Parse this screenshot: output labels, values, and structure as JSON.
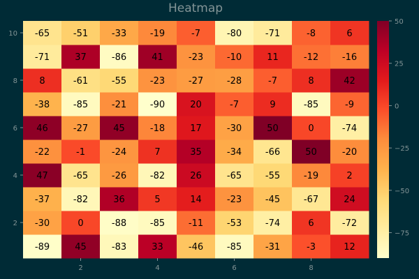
{
  "chart_data": {
    "type": "heatmap",
    "title": "Heatmap",
    "x": [
      1,
      2,
      3,
      4,
      5,
      6,
      7,
      8,
      9
    ],
    "y": [
      1,
      2,
      3,
      4,
      5,
      6,
      7,
      8,
      9,
      10
    ],
    "x_ticks": [
      2,
      4,
      6,
      8
    ],
    "y_ticks": [
      2,
      4,
      6,
      8,
      10
    ],
    "z": [
      [
        -89,
        45,
        -83,
        33,
        -46,
        -85,
        -31,
        -3,
        12
      ],
      [
        -30,
        0,
        -88,
        -85,
        -11,
        -53,
        -74,
        6,
        -72
      ],
      [
        -37,
        -82,
        36,
        5,
        14,
        -23,
        -45,
        -67,
        24
      ],
      [
        47,
        -65,
        -26,
        -82,
        26,
        -65,
        -55,
        -19,
        2
      ],
      [
        -22,
        -1,
        -24,
        7,
        35,
        -34,
        -66,
        50,
        -20
      ],
      [
        46,
        -27,
        45,
        -18,
        17,
        -30,
        50,
        0,
        -74
      ],
      [
        -38,
        -85,
        -21,
        -90,
        20,
        -7,
        9,
        -85,
        -9
      ],
      [
        8,
        -61,
        -55,
        -23,
        -27,
        -28,
        -7,
        8,
        42
      ],
      [
        -71,
        37,
        -86,
        41,
        -23,
        -10,
        11,
        -12,
        -16
      ],
      [
        -65,
        -51,
        -33,
        -19,
        -7,
        -80,
        -71,
        -8,
        6
      ]
    ],
    "colorscale": "YlOrRd",
    "zmin": -90,
    "zmax": 50,
    "colorbar_ticks": [
      50,
      25,
      0,
      -25,
      -50,
      -75
    ],
    "grid": false,
    "colors": {
      "background": "#002b36",
      "text": "#839496"
    }
  }
}
